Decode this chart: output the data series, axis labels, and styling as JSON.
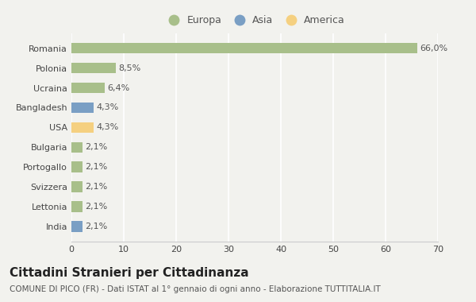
{
  "categories": [
    "India",
    "Lettonia",
    "Svizzera",
    "Portogallo",
    "Bulgaria",
    "USA",
    "Bangladesh",
    "Ucraina",
    "Polonia",
    "Romania"
  ],
  "values": [
    2.1,
    2.1,
    2.1,
    2.1,
    2.1,
    4.3,
    4.3,
    6.4,
    8.5,
    66.0
  ],
  "labels": [
    "2,1%",
    "2,1%",
    "2,1%",
    "2,1%",
    "2,1%",
    "4,3%",
    "4,3%",
    "6,4%",
    "8,5%",
    "66,0%"
  ],
  "colors": [
    "#7a9fc4",
    "#a8bf8a",
    "#a8bf8a",
    "#a8bf8a",
    "#a8bf8a",
    "#f5d080",
    "#7a9fc4",
    "#a8bf8a",
    "#a8bf8a",
    "#a8bf8a"
  ],
  "continent_colors": {
    "Europa": "#a8bf8a",
    "Asia": "#7a9fc4",
    "America": "#f5d080"
  },
  "legend_labels": [
    "Europa",
    "Asia",
    "America"
  ],
  "title": "Cittadini Stranieri per Cittadinanza",
  "subtitle": "COMUNE DI PICO (FR) - Dati ISTAT al 1° gennaio di ogni anno - Elaborazione TUTTITALIA.IT",
  "xlabel_ticks": [
    0,
    10,
    20,
    30,
    40,
    50,
    60,
    70
  ],
  "xlim": [
    0,
    70
  ],
  "background_color": "#f2f2ee",
  "bar_height": 0.55,
  "title_fontsize": 11,
  "subtitle_fontsize": 7.5,
  "label_fontsize": 8,
  "tick_fontsize": 8,
  "legend_fontsize": 9
}
